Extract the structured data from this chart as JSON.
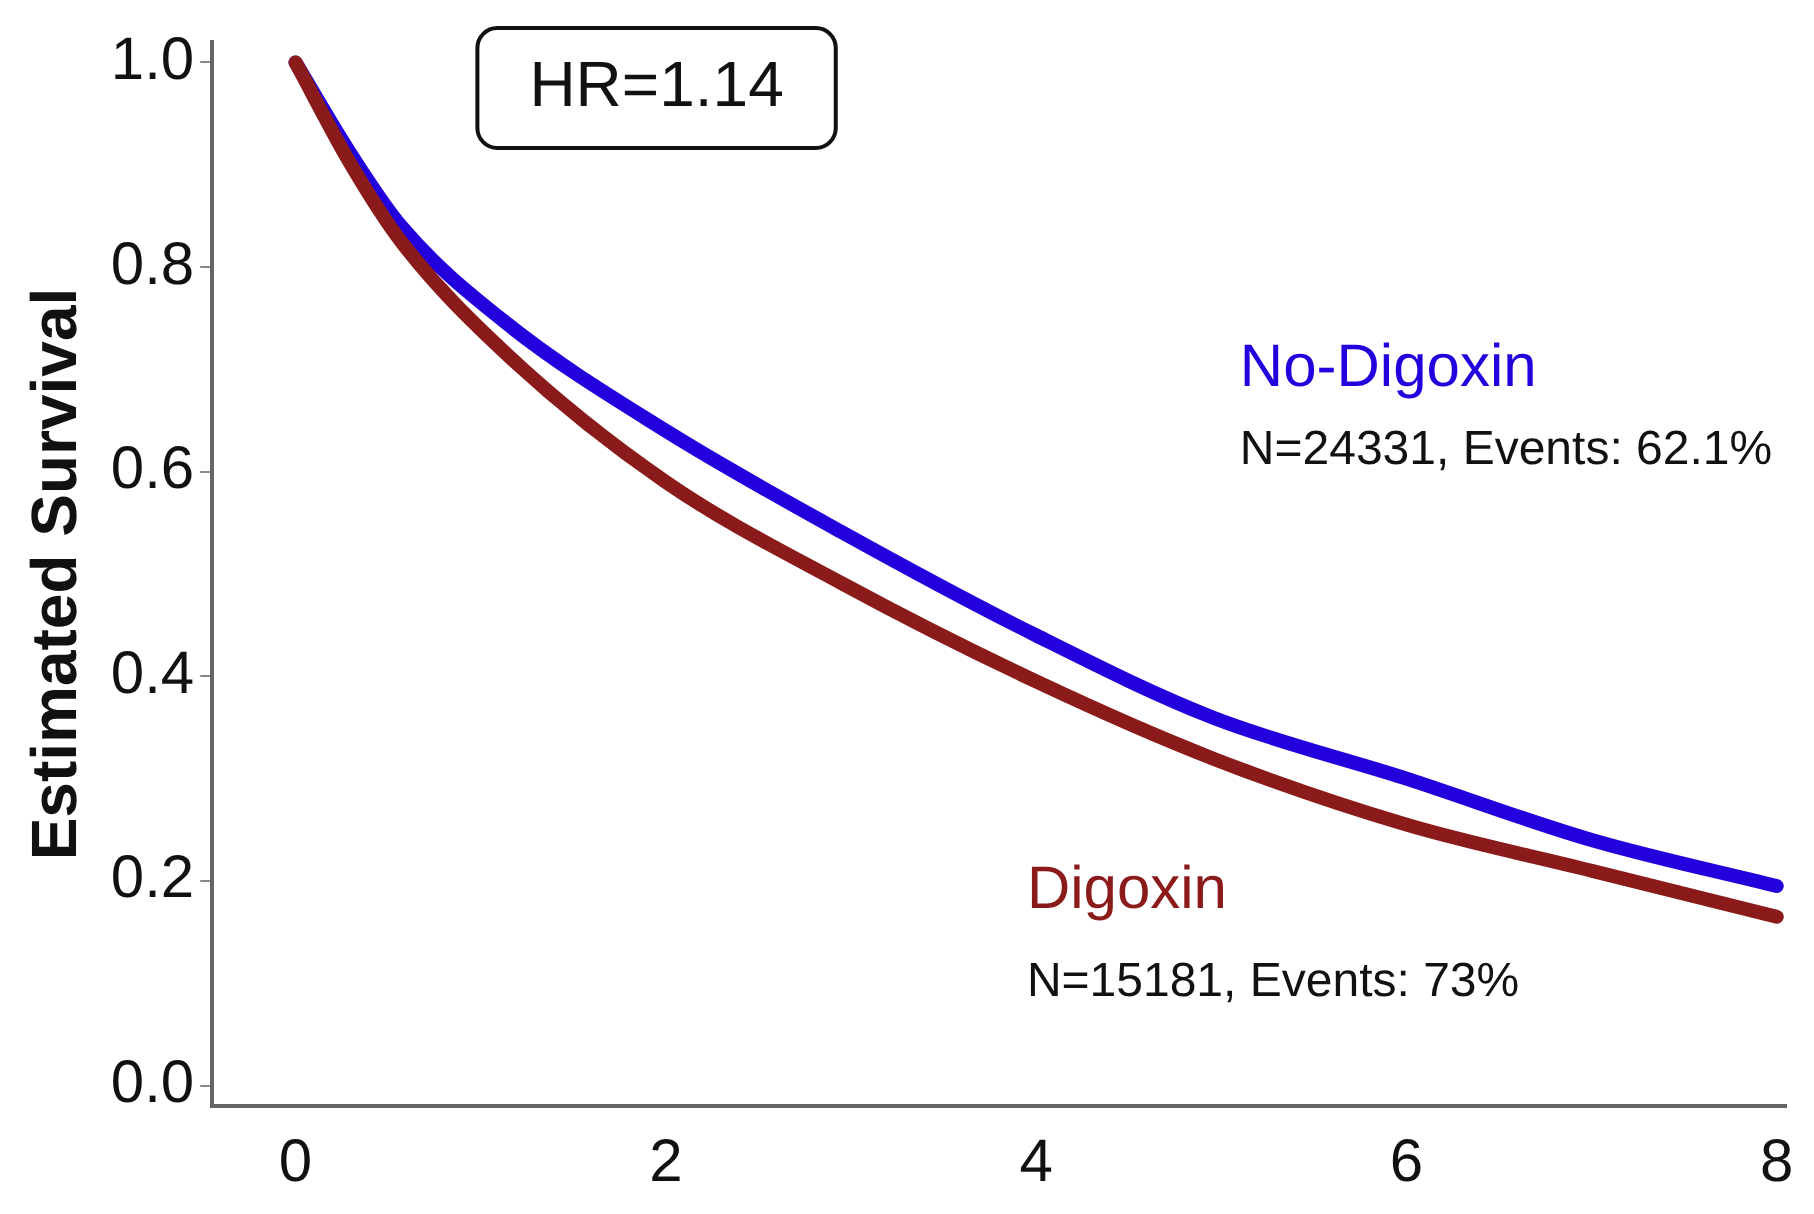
{
  "chart_data": {
    "type": "line",
    "ylabel": "Estimated Survival",
    "xlim": [
      -0.45,
      8.05
    ],
    "xticks": [
      0,
      2,
      4,
      6,
      8
    ],
    "ylim": [
      -0.02,
      1.02
    ],
    "yticks": [
      {
        "value": 0,
        "label": "0.0"
      },
      {
        "value": 0.2,
        "label": "0.2"
      },
      {
        "value": 0.4,
        "label": "0.4"
      },
      {
        "value": 0.6,
        "label": "0.6"
      },
      {
        "value": 0.8,
        "label": "0.8"
      },
      {
        "value": 1,
        "label": "1.0"
      }
    ],
    "grid": false,
    "legend": false,
    "marker": "none",
    "line_style": "solid",
    "series": [
      {
        "name": "No-Digoxin",
        "color": "#2200dd",
        "x": [
          0,
          0.3,
          0.57,
          1.14,
          2,
          2.96,
          4,
          4.95,
          6,
          7,
          8
        ],
        "values": [
          1.0,
          0.91,
          0.84,
          0.745,
          0.64,
          0.54,
          0.44,
          0.36,
          0.3,
          0.24,
          0.195
        ]
      },
      {
        "name": "Digoxin",
        "color": "#8b1a1a",
        "x": [
          0,
          0.3,
          0.57,
          1.14,
          2,
          2.96,
          4,
          4.95,
          6,
          7,
          8
        ],
        "values": [
          1.0,
          0.9,
          0.825,
          0.715,
          0.59,
          0.49,
          0.395,
          0.32,
          0.255,
          0.21,
          0.165
        ]
      }
    ],
    "annotations": [
      "HR=1.14",
      "N=24331, Events: 62.1%",
      "N=15181, Events: 73%"
    ]
  }
}
